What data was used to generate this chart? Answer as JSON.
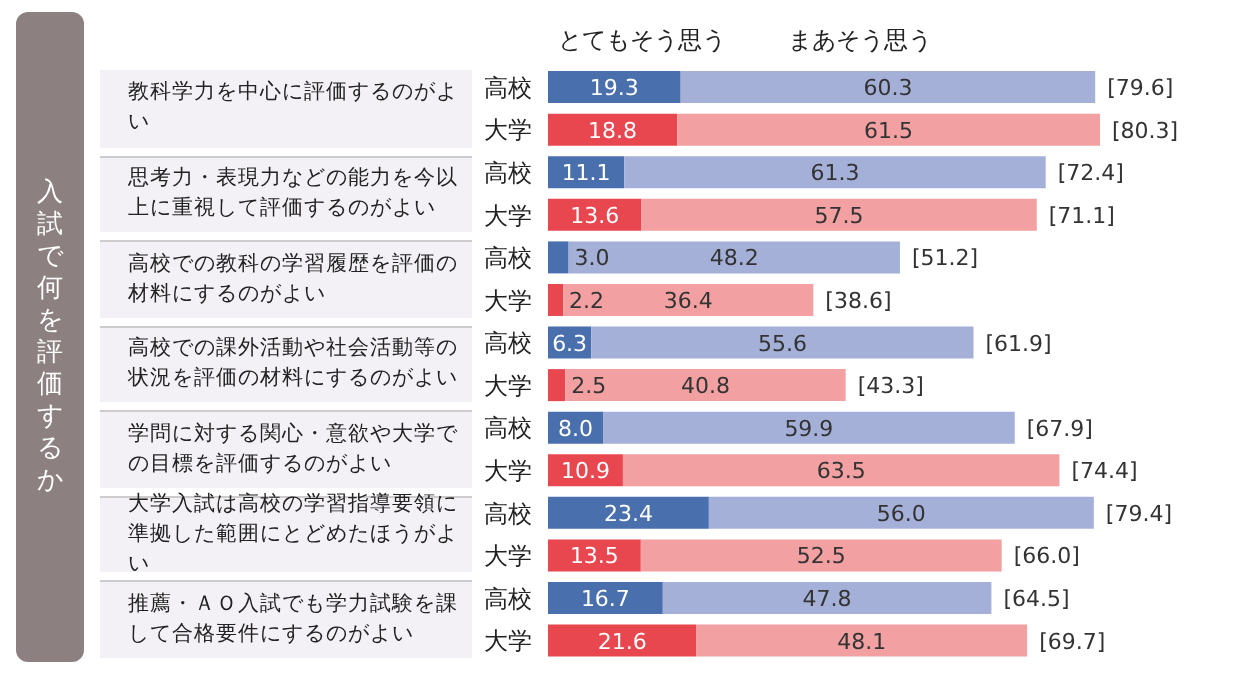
{
  "chart_data": {
    "type": "bar",
    "orientation": "horizontal",
    "stacked": true,
    "legend": "top",
    "categories": [
      "高校",
      "大学",
      "高校",
      "大学",
      "高校",
      "大学",
      "高校",
      "大学",
      "高校",
      "大学",
      "高校",
      "大学",
      "高校",
      "大学"
    ],
    "annotations": [
      "教科学力を中心に評価するのがよい",
      "思考力・表現力などの能力を今以上に重視して評価するのがよい",
      "高校での教科の学習履歴を評価の材料にするのがよい",
      "高校での課外活動や社会活動等の状況を評価の材料にするのがよい",
      "学問に対する関心・意欲や大学での目標を評価するのがよい",
      "大学入試は高校の学習指導要領に準拠した範囲にとどめたほうがよい",
      "推薦・ＡＯ入試でも学力試験を課して合格要件にするのがよい",
      "入試で何を評価するか"
    ],
    "series": [
      {
        "name": "とてもそう思う",
        "colors": [
          "#4a6fad",
          "#e8474f",
          "#4a6fad",
          "#e8474f",
          "#4a6fad",
          "#e8474f",
          "#4a6fad",
          "#e8474f",
          "#4a6fad",
          "#e8474f",
          "#4a6fad",
          "#e8474f",
          "#4a6fad",
          "#e8474f"
        ],
        "values": [
          19.3,
          18.8,
          11.1,
          13.6,
          3.0,
          2.2,
          6.3,
          2.5,
          8.0,
          10.9,
          23.4,
          13.5,
          16.7,
          21.6
        ],
        "value_labels": [
          "19.3",
          "18.8",
          "11.1",
          "13.6",
          "3.0",
          "2.2",
          "6.3",
          "2.5",
          "8.0",
          "10.9",
          "23.4",
          "13.5",
          "16.7",
          "21.6"
        ]
      },
      {
        "name": "まあそう思う",
        "colors": [
          "#a4b0d8",
          "#f2a0a2",
          "#a4b0d8",
          "#f2a0a2",
          "#a4b0d8",
          "#f2a0a2",
          "#a4b0d8",
          "#f2a0a2",
          "#a4b0d8",
          "#f2a0a2",
          "#a4b0d8",
          "#f2a0a2",
          "#a4b0d8",
          "#f2a0a2"
        ],
        "values": [
          60.3,
          61.5,
          61.3,
          57.5,
          48.2,
          36.4,
          55.6,
          40.8,
          59.9,
          63.5,
          56.0,
          52.5,
          47.8,
          48.1
        ],
        "value_labels": [
          "60.3",
          "61.5",
          "61.3",
          "57.5",
          "48.2",
          "36.4",
          "55.6",
          "40.8",
          "59.9",
          "63.5",
          "56.0",
          "52.5",
          "47.8",
          "48.1"
        ]
      }
    ],
    "totals": [
      "[79.6]",
      "[80.3]",
      "[72.4]",
      "[71.1]",
      "[51.2]",
      "[38.6]",
      "[61.9]",
      "[43.3]",
      "[67.9]",
      "[74.4]",
      "[79.4]",
      "[66.0]",
      "[64.5]",
      "[69.7]"
    ]
  }
}
